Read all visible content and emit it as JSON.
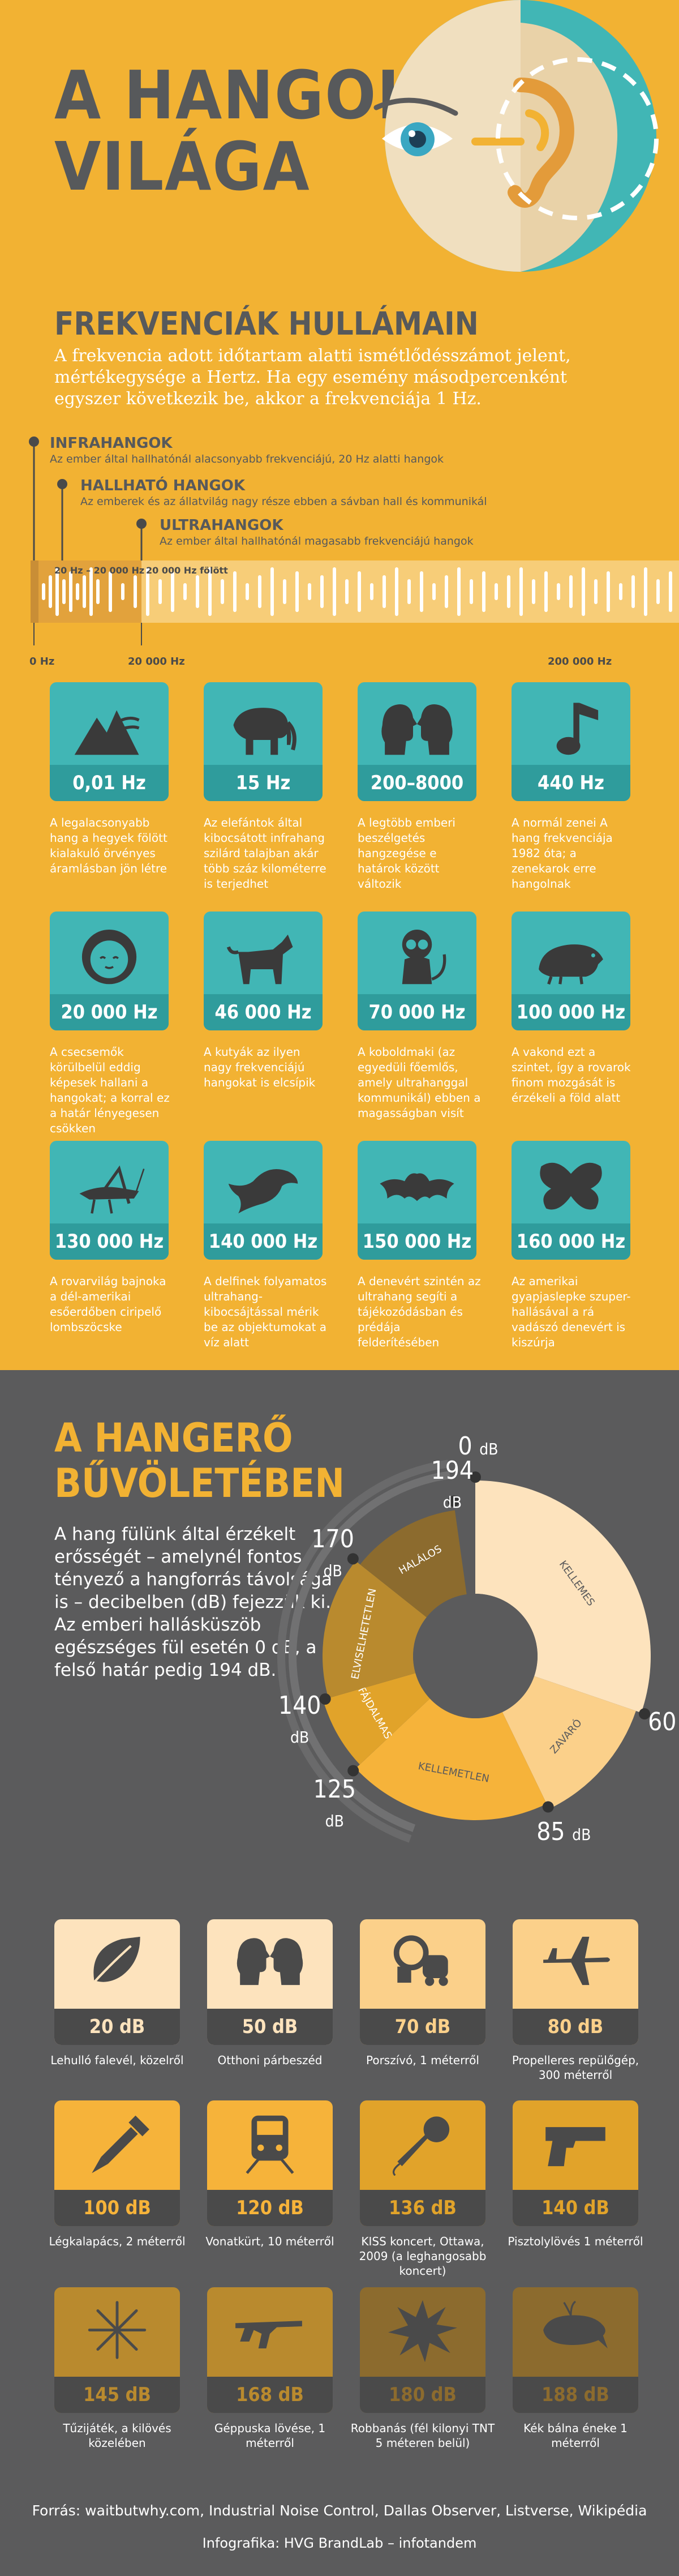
{
  "header": {
    "title_line1": "A HANGOK",
    "title_line2": "VILÁGA"
  },
  "frequency": {
    "title": "FREKVENCIÁK HULLÁMAIN",
    "intro": "A frekvencia adott időtartam alatti ismétlődésszámot jelent, mértékegysége a Hertz. Ha egy esemény másodpercenként egyszer következik be, akkor a frekvenciája 1 Hz.",
    "legend": [
      {
        "title": "INFRAHANGOK",
        "sub": "Az ember által hallhatónál alacsonyabb frekvenciájú, 20 Hz alatti hangok"
      },
      {
        "title": "HALLHATÓ HANGOK",
        "sub": "Az emberek és az állatvilág nagy része ebben a sávban hall és kommunikál"
      },
      {
        "title": "ULTRAHANGOK",
        "sub": "Az ember által hallhatónál magasabb frekvenciájú hangok"
      }
    ],
    "band_labels": [
      "20 Hz – 20 000 Hz",
      "20 000 Hz fölött"
    ],
    "axis_labels": [
      "0 Hz",
      "20 000 Hz",
      "200 000 Hz"
    ],
    "items": [
      {
        "icon": "mountain-wind-icon",
        "value": "0,01 Hz",
        "desc": "A legalacsonyabb hang a hegyek fölött kialakuló örvényes áramlásban jön létre"
      },
      {
        "icon": "elephant-icon",
        "value": "15 Hz",
        "desc": "Az elefántok által kibocsátott infrahang szilárd talajban akár több száz kilométerre is terjedhet"
      },
      {
        "icon": "two-heads-icon",
        "value": "200–8000 Hz",
        "desc": "A legtöbb emberi beszélgetés hangzegése e határok között változik"
      },
      {
        "icon": "music-note-icon",
        "value": "440 Hz",
        "desc": "A normál zenei A hang frekvenciája 1982 óta; a zenekarok erre hangolnak"
      },
      {
        "icon": "baby-icon",
        "value": "20 000 Hz",
        "desc": "A csecsemők körülbelül eddig képesek hallani a hangokat; a korral ez a határ lényegesen csökken"
      },
      {
        "icon": "dog-icon",
        "value": "46 000 Hz",
        "desc": "A kutyák az ilyen nagy frekvenciájú hangokat is elcsípik"
      },
      {
        "icon": "tarsier-icon",
        "value": "70 000 Hz",
        "desc": "A koboldmaki (az egyedüli főemlős, amely ultrahanggal kommunikál) ebben a magasságban visít"
      },
      {
        "icon": "mole-icon",
        "value": "100 000 Hz",
        "desc": "A vakond ezt a szintet, így a rovarok finom mozgását is érzékeli a föld alatt"
      },
      {
        "icon": "grasshopper-icon",
        "value": "130 000 Hz",
        "desc": "A rovarvilág bajnoka a dél-amerikai esőerdőben ciripelő lombszöcske"
      },
      {
        "icon": "dolphin-icon",
        "value": "140 000 Hz",
        "desc": "A delfinek folyamatos ultrahang-kibocsájtással mérik be az objektumokat a víz alatt"
      },
      {
        "icon": "bat-icon",
        "value": "150 000 Hz",
        "desc": "A denevért szintén az ultrahang segíti a tájékozódásban és prédája felderítésében"
      },
      {
        "icon": "butterfly-icon",
        "value": "160 000 Hz",
        "desc": "Az amerikai gyapjaslepke szuper-hallásával a rá vadászó denevért is kiszúrja"
      }
    ]
  },
  "volume": {
    "title_line1": "A HANGERŐ",
    "title_line2": "BŰVÖLETÉBEN",
    "intro": "A hang fülünk által érzékelt erősségét – amelynél fontos tényező a hangforrás távolsága is – decibelben (dB) fejezzük ki. Az emberi hallásküszöb egészséges fül esetén 0 dB, a felső határ pedig 194 dB.",
    "db_labels": [
      {
        "num": "0",
        "unit": "dB"
      },
      {
        "num": "60",
        "unit": "dB"
      },
      {
        "num": "85",
        "unit": "dB"
      },
      {
        "num": "125",
        "unit": "dB"
      },
      {
        "num": "140",
        "unit": "dB"
      },
      {
        "num": "170",
        "unit": "dB"
      },
      {
        "num": "194",
        "unit": "dB"
      }
    ],
    "zones": [
      {
        "label": "KELLEMES",
        "from": 0,
        "to": 60,
        "color": "#fde3bd"
      },
      {
        "label": "ZAVARÓ",
        "from": 60,
        "to": 85,
        "color": "#fbd08a"
      },
      {
        "label": "KELLEMETLEN",
        "from": 85,
        "to": 125,
        "color": "#f6b33a"
      },
      {
        "label": "FÁJDALMAS",
        "from": 125,
        "to": 140,
        "color": "#e1a32a"
      },
      {
        "label": "ELVISELHETETLEN",
        "from": 140,
        "to": 170,
        "color": "#b98a2e"
      },
      {
        "label": "HALÁLOS",
        "from": 170,
        "to": 194,
        "color": "#8c6b2e"
      }
    ],
    "items": [
      {
        "icon": "leaf-icon",
        "value": "20 dB",
        "desc": "Lehulló falevél, közelről",
        "bg": "#fde3bd",
        "bar": "#4a4a4a",
        "fg": "#4a4a4a"
      },
      {
        "icon": "two-heads-icon",
        "value": "50 dB",
        "desc": "Otthoni párbeszéd",
        "bg": "#fde3bd",
        "bar": "#4a4a4a",
        "fg": "#4a4a4a"
      },
      {
        "icon": "vacuum-icon",
        "value": "70 dB",
        "desc": "Porszívó, 1 méterről",
        "bg": "#fbd08a",
        "bar": "#4a4a4a",
        "fg": "#4a4a4a"
      },
      {
        "icon": "airplane-icon",
        "value": "80 dB",
        "desc": "Propelleres repülőgép, 300 méterről",
        "bg": "#fbd08a",
        "bar": "#4a4a4a",
        "fg": "#4a4a4a"
      },
      {
        "icon": "jackhammer-icon",
        "value": "100 dB",
        "desc": "Légkalapács, 2 méterről",
        "bg": "#f6b33a",
        "bar": "#4a4a4a",
        "fg": "#4a4a4a"
      },
      {
        "icon": "train-icon",
        "value": "120 dB",
        "desc": "Vonatkürt, 10 méterről",
        "bg": "#f6b33a",
        "bar": "#4a4a4a",
        "fg": "#4a4a4a"
      },
      {
        "icon": "microphone-icon",
        "value": "136 dB",
        "desc": "KISS koncert, Ottawa, 2009 (a leghangosabb koncert)",
        "bg": "#e1a32a",
        "bar": "#4a4a4a",
        "fg": "#4a4a4a"
      },
      {
        "icon": "pistol-icon",
        "value": "140 dB",
        "desc": "Pisztolylövés 1 méterről",
        "bg": "#e1a32a",
        "bar": "#4a4a4a",
        "fg": "#4a4a4a"
      },
      {
        "icon": "firework-icon",
        "value": "145 dB",
        "desc": "Tűzijáték, a kilövés közelében",
        "bg": "#b98a2e",
        "bar": "#4a4a4a",
        "fg": "#4a4a4a"
      },
      {
        "icon": "machine-gun-icon",
        "value": "168 dB",
        "desc": "Géppuska lövése, 1 méterről",
        "bg": "#b98a2e",
        "bar": "#4a4a4a",
        "fg": "#4a4a4a"
      },
      {
        "icon": "explosion-icon",
        "value": "180 dB",
        "desc": "Robbanás (fél kilonyi TNT 5 méteren belül)",
        "bg": "#8c6b2e",
        "bar": "#4a4a4a",
        "fg": "#4a4a4a"
      },
      {
        "icon": "whale-icon",
        "value": "188 dB",
        "desc": "Kék bálna éneke 1 méterről",
        "bg": "#8c6b2e",
        "bar": "#4a4a4a",
        "fg": "#4a4a4a"
      }
    ]
  },
  "footer": {
    "sources": "Forrás: waitbutwhy.com, Industrial Noise Control, Dallas Observer, Listverse, Wikipédia",
    "credit": "Infografika: HVG BrandLab – infotandem"
  },
  "colors": {
    "yellow": "#f2b233",
    "teal": "#41b6b5",
    "teal_dark": "#2f9c9c",
    "gray": "#5b5b5c",
    "text_dark": "#57595b"
  }
}
